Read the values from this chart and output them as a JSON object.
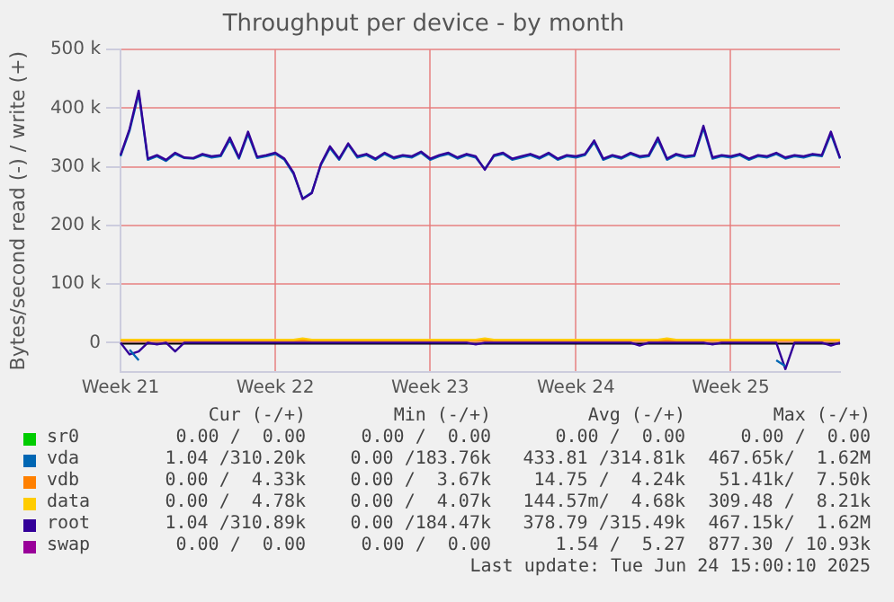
{
  "chart_data": {
    "type": "line",
    "title": "Throughput per device - by month",
    "ylabel": "Bytes/second read (-) / write (+)",
    "categories": [
      "Week 21",
      null,
      null,
      null,
      null,
      null,
      null,
      null,
      null,
      null,
      null,
      null,
      null,
      null,
      null,
      null,
      null,
      "Week 22",
      null,
      null,
      null,
      null,
      null,
      null,
      null,
      null,
      null,
      null,
      null,
      null,
      null,
      null,
      null,
      null,
      "Week 23",
      null,
      null,
      null,
      null,
      null,
      null,
      null,
      null,
      null,
      null,
      null,
      null,
      null,
      null,
      null,
      "Week 24",
      null,
      null,
      null,
      null,
      null,
      null,
      null,
      null,
      null,
      null,
      null,
      null,
      null,
      null,
      null,
      null,
      "Week 25",
      null,
      null,
      null,
      null,
      null,
      null,
      null,
      null,
      null,
      null,
      null,
      null
    ],
    "ylim": [
      -50000,
      500000
    ],
    "yticks": [
      {
        "value": 0,
        "label": "0"
      },
      {
        "value": 100000,
        "label": "100 k"
      },
      {
        "value": 200000,
        "label": "200 k"
      },
      {
        "value": 300000,
        "label": "300 k"
      },
      {
        "value": 400000,
        "label": "400 k"
      },
      {
        "value": 500000,
        "label": "500 k"
      }
    ],
    "grid": true,
    "legend": "bottom",
    "marker": "none",
    "line_style": "solid",
    "series": [
      {
        "name": "sr0",
        "color": "#00cc00",
        "values": [
          null,
          null,
          null,
          null,
          null,
          null,
          null,
          null,
          null,
          null,
          null,
          null,
          null,
          null,
          null,
          null,
          null,
          null,
          null,
          null,
          null,
          null,
          null,
          null,
          null,
          null,
          null,
          null,
          null,
          null,
          null,
          null,
          null,
          null,
          null,
          null,
          null,
          null,
          null,
          null,
          null,
          null,
          null,
          null,
          null,
          null,
          null,
          null,
          null,
          null,
          null,
          null,
          null,
          null,
          null,
          null,
          null,
          null,
          null,
          null,
          null,
          null,
          null,
          null,
          null,
          null,
          null,
          null,
          null,
          null,
          null,
          null,
          null,
          null,
          null,
          null,
          null,
          null,
          null,
          null
        ]
      },
      {
        "name": "vda",
        "color": "#0066b3",
        "values": [
          318000,
          362000,
          425000,
          312000,
          318000,
          310000,
          322000,
          315000,
          314000,
          320000,
          316000,
          318000,
          346000,
          314000,
          356000,
          315000,
          318000,
          322000,
          312000,
          288000,
          246000,
          256000,
          303000,
          332000,
          312000,
          338000,
          316000,
          320000,
          312000,
          322000,
          314000,
          318000,
          316000,
          324000,
          312000,
          318000,
          322000,
          314000,
          320000,
          316000,
          296000,
          318000,
          322000,
          312000,
          316000,
          320000,
          314000,
          322000,
          312000,
          318000,
          316000,
          320000,
          342000,
          312000,
          318000,
          314000,
          322000,
          316000,
          318000,
          346000,
          312000,
          320000,
          316000,
          318000,
          366000,
          314000,
          318000,
          316000,
          320000,
          312000,
          318000,
          316000,
          322000,
          314000,
          318000,
          316000,
          320000,
          318000,
          356000,
          314000
        ]
      },
      {
        "name": "vdb",
        "color": "#ff8000",
        "values": [
          4000,
          4000,
          4000,
          4000,
          4000,
          4000,
          4000,
          4000,
          4000,
          4000,
          4000,
          4000,
          4000,
          4000,
          4000,
          4000,
          4000,
          4000,
          4000,
          4000,
          4000,
          4000,
          4000,
          4000,
          4000,
          4000,
          4000,
          4000,
          4000,
          4000,
          4000,
          4000,
          4000,
          4000,
          4000,
          4000,
          4000,
          4000,
          4000,
          4000,
          4000,
          4000,
          4000,
          4000,
          4000,
          4000,
          4000,
          4000,
          4000,
          4000,
          4000,
          4000,
          4000,
          4000,
          4000,
          4000,
          4000,
          4000,
          4000,
          4000,
          4000,
          4000,
          4000,
          4000,
          4000,
          4000,
          4000,
          4000,
          4000,
          4000,
          4000,
          4000,
          4000,
          4000,
          4000,
          4000,
          4000,
          4000,
          4000,
          4000
        ]
      },
      {
        "name": "data",
        "color": "#ffcc00",
        "values": [
          5000,
          5000,
          5000,
          5000,
          5000,
          5000,
          5000,
          5000,
          5000,
          5000,
          5000,
          5000,
          5000,
          5000,
          5000,
          5000,
          5000,
          5000,
          5000,
          5000,
          7000,
          5000,
          5000,
          5000,
          5000,
          5000,
          5000,
          5000,
          5000,
          5000,
          5000,
          5000,
          5000,
          5000,
          5000,
          5000,
          5000,
          5000,
          5000,
          5000,
          7000,
          5000,
          5000,
          5000,
          5000,
          5000,
          5000,
          5000,
          5000,
          5000,
          5000,
          5000,
          5000,
          5000,
          5000,
          5000,
          5000,
          5000,
          5000,
          5000,
          7000,
          5000,
          5000,
          5000,
          5000,
          5000,
          5000,
          5000,
          5000,
          5000,
          5000,
          5000,
          5000,
          5000,
          5000,
          5000,
          5000,
          5000,
          5000,
          5000
        ]
      },
      {
        "name": "root",
        "color": "#330099",
        "values": [
          320000,
          365000,
          430000,
          314000,
          320000,
          312000,
          324000,
          316000,
          315000,
          322000,
          318000,
          320000,
          350000,
          316000,
          360000,
          317000,
          320000,
          324000,
          314000,
          290000,
          245000,
          255000,
          305000,
          335000,
          314000,
          340000,
          318000,
          322000,
          314000,
          324000,
          316000,
          320000,
          318000,
          326000,
          314000,
          320000,
          324000,
          316000,
          322000,
          318000,
          295000,
          320000,
          324000,
          314000,
          318000,
          322000,
          316000,
          324000,
          314000,
          320000,
          318000,
          322000,
          345000,
          314000,
          320000,
          316000,
          324000,
          318000,
          320000,
          350000,
          314000,
          322000,
          318000,
          320000,
          370000,
          316000,
          320000,
          318000,
          322000,
          314000,
          320000,
          318000,
          324000,
          316000,
          320000,
          318000,
          322000,
          320000,
          360000,
          315000
        ]
      },
      {
        "name": "swap",
        "color": "#990099",
        "values": [
          null,
          null,
          null,
          null,
          null,
          null,
          null,
          null,
          null,
          null,
          null,
          null,
          null,
          null,
          null,
          null,
          null,
          null,
          null,
          null,
          null,
          null,
          null,
          null,
          null,
          null,
          null,
          null,
          null,
          null,
          null,
          null,
          null,
          null,
          null,
          null,
          null,
          null,
          null,
          null,
          null,
          null,
          null,
          null,
          null,
          null,
          null,
          null,
          null,
          null,
          null,
          null,
          null,
          null,
          null,
          null,
          null,
          null,
          null,
          null,
          null,
          null,
          null,
          null,
          null,
          null,
          null,
          null,
          null,
          null,
          null,
          null,
          null,
          null,
          null,
          null,
          null,
          null,
          null,
          null
        ]
      },
      {
        "color": "#330099",
        "values": [
          0,
          -20000,
          -15000,
          0,
          -3000,
          0,
          -15000,
          0,
          0,
          0,
          0,
          0,
          0,
          0,
          0,
          0,
          0,
          0,
          0,
          0,
          0,
          0,
          0,
          0,
          0,
          0,
          0,
          0,
          0,
          0,
          0,
          0,
          0,
          0,
          0,
          0,
          0,
          0,
          0,
          -3000,
          0,
          0,
          0,
          0,
          0,
          0,
          0,
          0,
          0,
          0,
          0,
          0,
          0,
          0,
          0,
          0,
          0,
          -5000,
          0,
          0,
          0,
          0,
          0,
          0,
          0,
          -3000,
          0,
          0,
          0,
          0,
          0,
          0,
          0,
          -45000,
          0,
          0,
          0,
          0,
          -5000,
          0
        ]
      },
      {
        "color": "#0066b3",
        "values": [
          null,
          -12000,
          -30000,
          null,
          null,
          null,
          null,
          null,
          null,
          null,
          null,
          null,
          null,
          null,
          null,
          null,
          null,
          null,
          null,
          null,
          null,
          null,
          null,
          null,
          null,
          null,
          null,
          null,
          null,
          null,
          null,
          null,
          null,
          null,
          null,
          null,
          null,
          null,
          null,
          null,
          null,
          null,
          null,
          null,
          null,
          null,
          null,
          null,
          null,
          null,
          null,
          null,
          null,
          null,
          null,
          null,
          null,
          null,
          null,
          null,
          null,
          null,
          null,
          null,
          null,
          null,
          null,
          null,
          null,
          null,
          null,
          null,
          -30000,
          -40000,
          null,
          null,
          null,
          null,
          null,
          null
        ]
      }
    ],
    "annotations": [
      "Cur (-/+)",
      "Min (-/+)",
      "Avg (-/+)",
      "Max (-/+)",
      "0.00 /  0.00",
      "0.00 /  0.00",
      "0.00 /  0.00",
      "0.00 /  0.00",
      "1.04 /310.20k",
      "0.00 /183.76k",
      "433.81 /314.81k",
      "467.65k/  1.62M",
      "0.00 /  4.33k",
      "0.00 /  3.67k",
      "14.75 /  4.24k",
      "51.41k/  7.50k",
      "0.00 /  4.78k",
      "0.00 /  4.07k",
      "144.57m/  4.68k",
      "309.48 /  8.21k",
      "1.04 /310.89k",
      "0.00 /184.47k",
      "378.79 /315.49k",
      "467.15k/  1.62M",
      "0.00 /  0.00",
      "0.00 /  0.00",
      "1.54 /  5.27",
      "877.30 / 10.93k",
      "Last update: Tue Jun 24 15:00:10 2025"
    ]
  }
}
